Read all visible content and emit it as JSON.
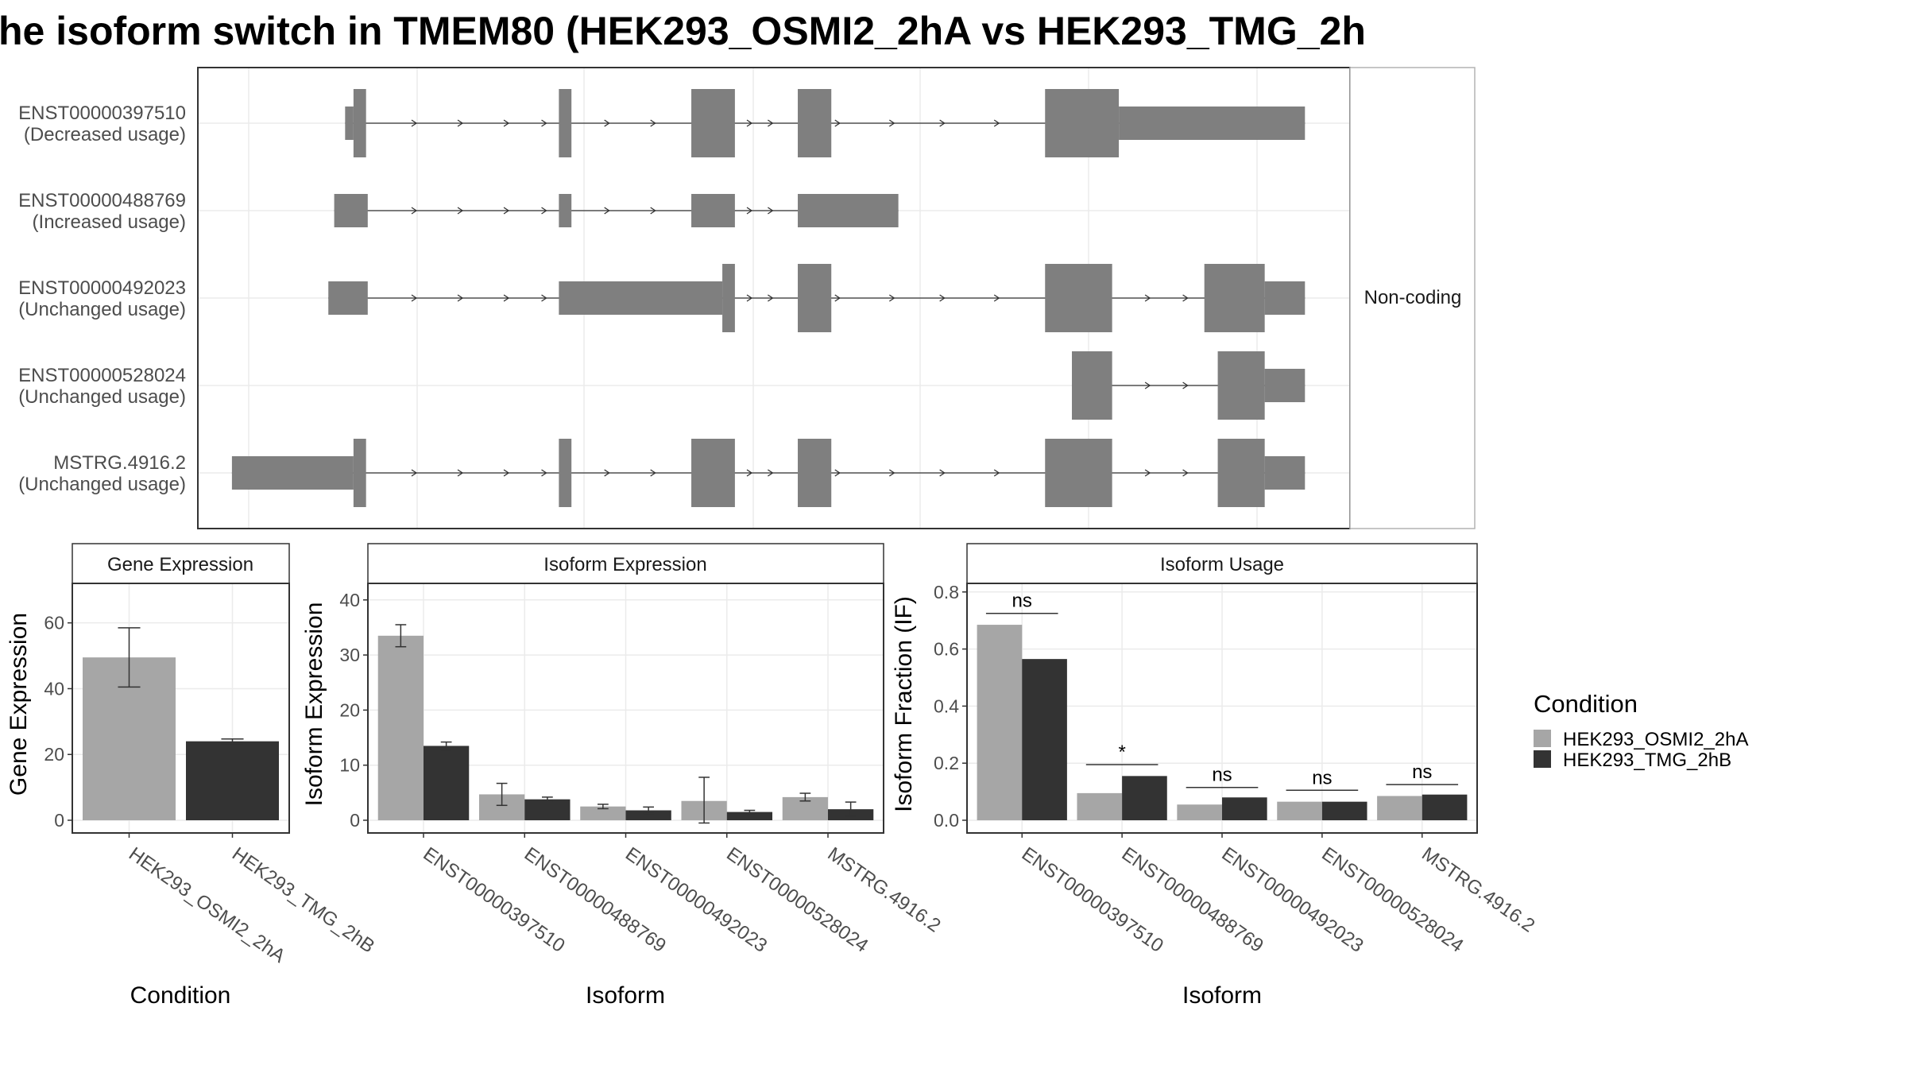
{
  "title": "he isoform switch in TMEM80 (HEK293_OSMI2_2hA vs HEK293_TMG_2h",
  "colors": {
    "condition_a": "#a6a6a6",
    "condition_b": "#333333",
    "exon": "#7f7f7f",
    "grid": "#ebebeb",
    "panel_border": "#333333",
    "strip_fill": "#ffffff"
  },
  "structure": {
    "facet_label": "Non-coding",
    "genomic_range": [
      0,
      1000
    ],
    "transcripts": [
      {
        "id": "ENST00000397510",
        "usage": "(Decreased usage)",
        "exons": [
          {
            "start": 115,
            "end": 125,
            "h": "mid"
          },
          {
            "start": 125,
            "end": 140,
            "h": "tall"
          },
          {
            "start": 370,
            "end": 385,
            "h": "tall"
          },
          {
            "start": 528,
            "end": 580,
            "h": "tall"
          },
          {
            "start": 655,
            "end": 695,
            "h": "tall"
          },
          {
            "start": 950,
            "end": 1038,
            "h": "tall"
          },
          {
            "start": 1038,
            "end": 1260,
            "h": "mid"
          }
        ],
        "arrows": [
          200,
          255,
          310,
          355,
          430,
          485,
          600,
          625,
          705,
          770,
          830,
          895
        ]
      },
      {
        "id": "ENST00000488769",
        "usage": "(Increased usage)",
        "exons": [
          {
            "start": 102,
            "end": 142,
            "h": "mid"
          },
          {
            "start": 370,
            "end": 385,
            "h": "mid"
          },
          {
            "start": 528,
            "end": 580,
            "h": "mid"
          },
          {
            "start": 655,
            "end": 775,
            "h": "mid"
          }
        ],
        "arrows": [
          200,
          255,
          310,
          355,
          430,
          485,
          600,
          625
        ]
      },
      {
        "id": "ENST00000492023",
        "usage": "(Unchanged usage)",
        "exons": [
          {
            "start": 95,
            "end": 142,
            "h": "mid"
          },
          {
            "start": 370,
            "end": 565,
            "h": "mid"
          },
          {
            "start": 565,
            "end": 580,
            "h": "tall"
          },
          {
            "start": 655,
            "end": 695,
            "h": "tall"
          },
          {
            "start": 950,
            "end": 1030,
            "h": "tall"
          },
          {
            "start": 1140,
            "end": 1212,
            "h": "tall"
          },
          {
            "start": 1212,
            "end": 1260,
            "h": "mid"
          }
        ],
        "arrows": [
          200,
          255,
          310,
          355,
          600,
          625,
          705,
          770,
          830,
          895,
          1075,
          1120
        ]
      },
      {
        "id": "ENST00000528024",
        "usage": "(Unchanged usage)",
        "exons": [
          {
            "start": 982,
            "end": 1030,
            "h": "tall"
          },
          {
            "start": 1156,
            "end": 1212,
            "h": "tall"
          },
          {
            "start": 1212,
            "end": 1260,
            "h": "mid"
          }
        ],
        "arrows": [
          1075,
          1120
        ]
      },
      {
        "id": "MSTRG.4916.2",
        "usage": "(Unchanged usage)",
        "exons": [
          {
            "start": -20,
            "end": 125,
            "h": "mid"
          },
          {
            "start": 125,
            "end": 140,
            "h": "tall"
          },
          {
            "start": 370,
            "end": 385,
            "h": "tall"
          },
          {
            "start": 528,
            "end": 580,
            "h": "tall"
          },
          {
            "start": 655,
            "end": 695,
            "h": "tall"
          },
          {
            "start": 950,
            "end": 1030,
            "h": "tall"
          },
          {
            "start": 1156,
            "end": 1212,
            "h": "tall"
          },
          {
            "start": 1212,
            "end": 1260,
            "h": "mid"
          }
        ],
        "arrows": [
          200,
          255,
          310,
          355,
          430,
          485,
          600,
          625,
          705,
          770,
          830,
          895,
          1075,
          1120
        ]
      }
    ]
  },
  "chart_data": [
    {
      "type": "bar",
      "strip": "Gene Expression",
      "xlabel": "Condition",
      "ylabel": "Gene Expression",
      "ylim": [
        0,
        72
      ],
      "yticks": [
        0,
        20,
        40,
        60
      ],
      "categories": [
        "HEK293_OSMI2_2hA",
        "HEK293_TMG_2hB"
      ],
      "values": [
        49.5,
        24.0
      ],
      "errors": [
        [
          40.5,
          58.5
        ],
        [
          23.3,
          24.7
        ]
      ]
    },
    {
      "type": "bar",
      "strip": "Isoform Expression",
      "xlabel": "Isoform",
      "ylabel": "Isoform Expression",
      "ylim": [
        0,
        43
      ],
      "yticks": [
        0,
        10,
        20,
        30,
        40
      ],
      "categories": [
        "ENST00000397510",
        "ENST00000488769",
        "ENST00000492023",
        "ENST00000528024",
        "MSTRG.4916.2"
      ],
      "series": [
        {
          "name": "HEK293_OSMI2_2hA",
          "values": [
            33.5,
            4.7,
            2.5,
            3.5,
            4.2
          ],
          "errors": [
            [
              31.5,
              35.5
            ],
            [
              2.7,
              6.7
            ],
            [
              2.1,
              2.9
            ],
            [
              -0.5,
              7.8
            ],
            [
              3.5,
              4.9
            ]
          ]
        },
        {
          "name": "HEK293_TMG_2hB",
          "values": [
            13.5,
            3.8,
            1.8,
            1.5,
            2.0
          ],
          "errors": [
            [
              12.8,
              14.2
            ],
            [
              3.4,
              4.2
            ],
            [
              1.2,
              2.4
            ],
            [
              1.2,
              1.8
            ],
            [
              0.7,
              3.3
            ]
          ]
        }
      ]
    },
    {
      "type": "bar",
      "strip": "Isoform Usage",
      "xlabel": "Isoform",
      "ylabel": "Isoform Fraction (IF)",
      "ylim": [
        0,
        0.83
      ],
      "yticks": [
        0.0,
        0.2,
        0.4,
        0.6,
        0.8
      ],
      "ytick_labels": [
        "0.0",
        "0.2",
        "0.4",
        "0.6",
        "0.8"
      ],
      "categories": [
        "ENST00000397510",
        "ENST00000488769",
        "ENST00000492023",
        "ENST00000528024",
        "MSTRG.4916.2"
      ],
      "series": [
        {
          "name": "HEK293_OSMI2_2hA",
          "values": [
            0.685,
            0.095,
            0.055,
            0.065,
            0.085
          ]
        },
        {
          "name": "HEK293_TMG_2hB",
          "values": [
            0.565,
            0.155,
            0.08,
            0.065,
            0.09
          ]
        }
      ],
      "significance": [
        "ns",
        "*",
        "ns",
        "ns",
        "ns"
      ],
      "significance_y": [
        0.725,
        0.195,
        0.115,
        0.105,
        0.125
      ]
    }
  ],
  "legend": {
    "title": "Condition",
    "placement": "right",
    "items": [
      "HEK293_OSMI2_2hA",
      "HEK293_TMG_2hB"
    ]
  }
}
